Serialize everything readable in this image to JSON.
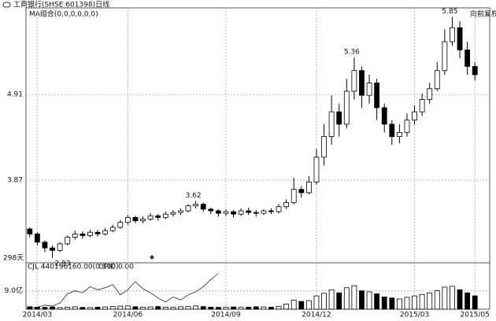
{
  "header": {
    "title": "工商银行(SHSE 601398)日线"
  },
  "chart_data": [
    {
      "type": "candlestick",
      "subtitle": "MA组合(0,0,0,0,0,0)",
      "days_label": "298天",
      "adjust_label": "向前复权",
      "categories": [
        null,
        "2014/03",
        null,
        null,
        null,
        null,
        null,
        null,
        null,
        null,
        null,
        null,
        null,
        "2014/06",
        null,
        null,
        null,
        null,
        null,
        null,
        null,
        null,
        null,
        null,
        null,
        null,
        "2014/09",
        null,
        null,
        null,
        null,
        null,
        null,
        null,
        null,
        null,
        null,
        null,
        "2014/12",
        null,
        null,
        null,
        null,
        null,
        null,
        null,
        null,
        null,
        null,
        null,
        null,
        "2015/03",
        null,
        null,
        null,
        null,
        null,
        null,
        null,
        "2015/05"
      ],
      "open": [
        3.28,
        3.22,
        3.12,
        3.05,
        3.02,
        3.1,
        3.18,
        3.22,
        3.2,
        3.24,
        3.22,
        3.26,
        3.3,
        3.36,
        3.42,
        3.38,
        3.4,
        3.44,
        3.42,
        3.46,
        3.48,
        3.5,
        3.56,
        3.58,
        3.52,
        3.5,
        3.47,
        3.49,
        3.46,
        3.5,
        3.48,
        3.47,
        3.5,
        3.49,
        3.55,
        3.6,
        3.76,
        3.72,
        3.85,
        4.15,
        4.4,
        4.7,
        4.55,
        4.95,
        5.2,
        4.9,
        5.05,
        4.75,
        4.55,
        4.4,
        4.45,
        4.6,
        4.7,
        4.85,
        4.98,
        5.2,
        5.55,
        5.72,
        5.45,
        5.25
      ],
      "close": [
        3.22,
        3.12,
        3.05,
        3.02,
        3.1,
        3.18,
        3.22,
        3.2,
        3.24,
        3.22,
        3.26,
        3.3,
        3.36,
        3.42,
        3.38,
        3.4,
        3.44,
        3.42,
        3.46,
        3.48,
        3.5,
        3.56,
        3.58,
        3.52,
        3.5,
        3.47,
        3.49,
        3.46,
        3.5,
        3.48,
        3.47,
        3.5,
        3.49,
        3.55,
        3.6,
        3.76,
        3.72,
        3.85,
        4.15,
        4.4,
        4.7,
        4.55,
        4.95,
        5.2,
        4.9,
        5.05,
        4.75,
        4.55,
        4.4,
        4.45,
        4.6,
        4.7,
        4.85,
        4.98,
        5.2,
        5.55,
        5.72,
        5.45,
        5.25,
        5.15
      ],
      "high": [
        3.3,
        3.24,
        3.14,
        3.08,
        3.12,
        3.2,
        3.26,
        3.25,
        3.27,
        3.27,
        3.29,
        3.33,
        3.39,
        3.45,
        3.44,
        3.43,
        3.47,
        3.46,
        3.49,
        3.51,
        3.53,
        3.58,
        3.62,
        3.6,
        3.54,
        3.52,
        3.52,
        3.51,
        3.53,
        3.54,
        3.51,
        3.52,
        3.53,
        3.58,
        3.64,
        3.9,
        3.8,
        3.92,
        4.25,
        4.55,
        4.9,
        4.8,
        5.1,
        5.36,
        5.25,
        5.15,
        5.1,
        4.8,
        4.6,
        4.55,
        4.68,
        4.78,
        4.92,
        5.05,
        5.3,
        5.7,
        5.85,
        5.8,
        5.55,
        5.3
      ],
      "low": [
        3.18,
        3.08,
        3.0,
        2.93,
        3.0,
        3.08,
        3.15,
        3.16,
        3.18,
        3.19,
        3.2,
        3.24,
        3.28,
        3.33,
        3.35,
        3.35,
        3.38,
        3.38,
        3.4,
        3.43,
        3.45,
        3.48,
        3.53,
        3.49,
        3.46,
        3.43,
        3.44,
        3.42,
        3.44,
        3.45,
        3.43,
        3.45,
        3.46,
        3.47,
        3.52,
        3.58,
        3.66,
        3.7,
        3.82,
        4.05,
        4.3,
        4.4,
        4.5,
        4.85,
        4.75,
        4.8,
        4.6,
        4.45,
        4.3,
        4.32,
        4.4,
        4.55,
        4.65,
        4.8,
        4.95,
        5.15,
        5.5,
        5.35,
        5.15,
        5.08
      ],
      "annotations": [
        {
          "value": 2.93,
          "label": "2.93"
        },
        {
          "value": 3.62,
          "label": "3.62"
        },
        {
          "value": 5.36,
          "label": "5.36"
        },
        {
          "value": 5.85,
          "label": "5.85"
        }
      ],
      "ylim": [
        2.88,
        5.96
      ],
      "yticks": [
        3.87,
        4.91
      ],
      "grid": true
    },
    {
      "type": "bar",
      "header": "CJL 440196160.00(0:100)",
      "indicator": "OPID 0.00",
      "values": [
        1.2,
        1.0,
        0.9,
        1.1,
        0.8,
        1.0,
        1.2,
        0.9,
        0.8,
        1.0,
        1.1,
        1.3,
        1.5,
        1.6,
        1.2,
        1.0,
        1.1,
        1.3,
        1.0,
        0.9,
        1.2,
        1.4,
        1.6,
        1.3,
        1.0,
        0.9,
        1.0,
        1.1,
        0.9,
        1.0,
        1.2,
        1.1,
        1.0,
        1.4,
        2.5,
        4.5,
        3.8,
        4.2,
        6.5,
        7.8,
        9.5,
        8.0,
        10.5,
        11.5,
        9.0,
        8.5,
        7.5,
        6.0,
        5.5,
        5.0,
        5.8,
        6.5,
        7.2,
        8.0,
        9.0,
        10.8,
        11.2,
        9.5,
        8.0,
        6.5
      ],
      "line": [
        0.5,
        1.0,
        2.0,
        1.5,
        3.0,
        7.5,
        9.0,
        8.0,
        11.0,
        9.5,
        10.5,
        12.0,
        7.0,
        9.5,
        13.5,
        10.0,
        8.0,
        5.5,
        3.5,
        6.0,
        4.5,
        7.0,
        8.5,
        11.0,
        14.5,
        17.5,
        null,
        null,
        null,
        null,
        null,
        null,
        null,
        null,
        null,
        null,
        null,
        null,
        null,
        null,
        null,
        null,
        null,
        null,
        null,
        null,
        null,
        null,
        null,
        null,
        null,
        null,
        null,
        null,
        null,
        null,
        null,
        null,
        null,
        null
      ],
      "ylim": [
        0,
        20
      ],
      "yticks": [
        {
          "value": 9,
          "label": "9.0亿"
        }
      ]
    }
  ]
}
